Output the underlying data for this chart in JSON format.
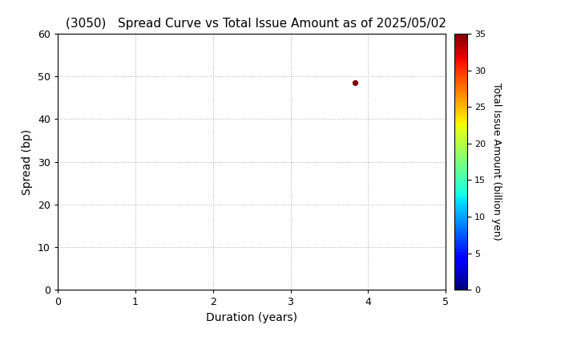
{
  "title": "(3050)   Spread Curve vs Total Issue Amount as of 2025/05/02",
  "xlabel": "Duration (years)",
  "ylabel": "Spread (bp)",
  "colorbar_label": "Total Issue Amount (billion yen)",
  "xlim": [
    0,
    5
  ],
  "ylim": [
    0,
    60
  ],
  "xticks": [
    0,
    1,
    2,
    3,
    4,
    5
  ],
  "yticks": [
    0,
    10,
    20,
    30,
    40,
    50,
    60
  ],
  "colorbar_ticks": [
    0,
    5,
    10,
    15,
    20,
    25,
    30,
    35
  ],
  "colorbar_vmin": 0,
  "colorbar_vmax": 35,
  "scatter_x": [
    3.83
  ],
  "scatter_y": [
    48.5
  ],
  "scatter_color_value": [
    35
  ],
  "scatter_size": 18,
  "background_color": "#ffffff",
  "grid_color": "#aaaaaa",
  "grid_linestyle": ":"
}
